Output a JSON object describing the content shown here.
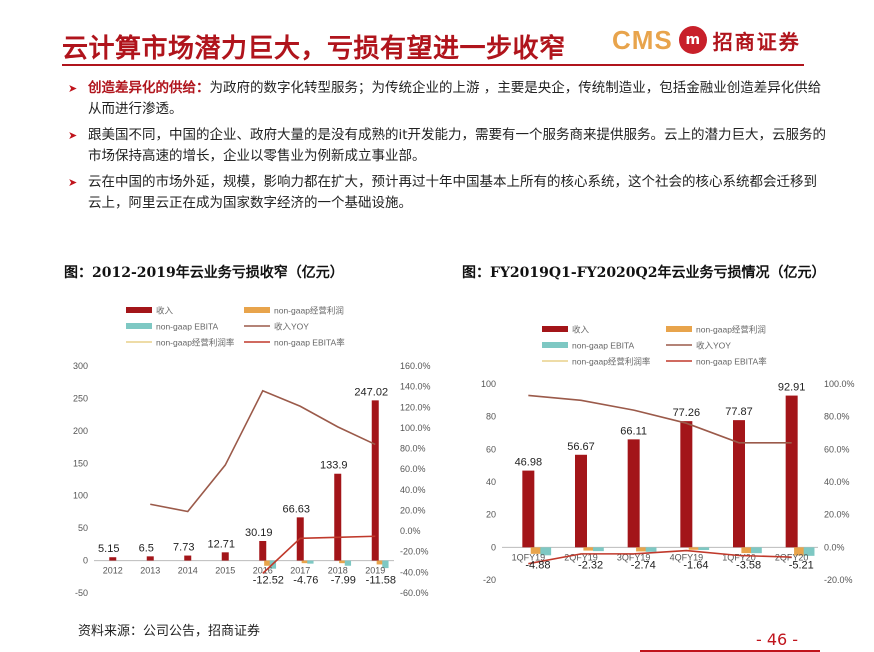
{
  "page": {
    "title": "云计算市场潜力巨大，亏损有望进一步收窄",
    "logo_cms": "CMS",
    "logo_badge": "m",
    "logo_cn": "招商证券",
    "bullets": [
      {
        "highlight": "创造差异化的供给：",
        "text": "为政府的数字化转型服务；为传统企业的上游 ，主要是央企，传统制造业，包括金融业创造差异化供给从而进行渗透。"
      },
      {
        "highlight": "",
        "text": "跟美国不同，中国的企业、政府大量的是没有成熟的it开发能力，需要有一个服务商来提供服务。云上的潜力巨大，云服务的市场保持高速的增长，企业以零售业为例新成立事业部。"
      },
      {
        "highlight": "",
        "text": "云在中国的市场外延，规模，影响力都在扩大，预计再过十年中国基本上所有的核心系统，这个社会的核心系统都会迁移到云上，阿里云正在成为国家数字经济的一个基础设施。"
      }
    ],
    "source": "资料来源：公司公告，招商证券",
    "page_number": "- 46 -",
    "colors": {
      "accent": "#b0141c",
      "bar_revenue": "#a31519",
      "bar_opprofit": "#e8a44c",
      "bar_ebita": "#7ec8c3",
      "line_yoy": "#9b5a4a",
      "line_ebita_rate": "#c0392b",
      "line_op_margin": "#e8d08a"
    }
  },
  "chart_data": [
    {
      "type": "bar",
      "caption": "图：2012-2019年云业务亏损收窄（亿元）",
      "categories": [
        "2012",
        "2013",
        "2014",
        "2015",
        "2016",
        "2017",
        "2018",
        "2019"
      ],
      "legend": [
        "收入",
        "non-gaap经营利润",
        "non-gaap EBITA",
        "收入YOY",
        "non-gaap经营利润率",
        "non-gaap EBITA率"
      ],
      "ylim": [
        -50,
        300
      ],
      "yticks": [
        "300",
        "250",
        "200",
        "150",
        "100",
        "50",
        "0",
        "-50"
      ],
      "y2lim": [
        -0.6,
        1.6
      ],
      "y2ticks": [
        "160.0%",
        "140.0%",
        "120.0%",
        "100.0%",
        "80.0%",
        "60.0%",
        "40.0%",
        "20.0%",
        "0.0%",
        "-20.0%",
        "-40.0%",
        "-60.0%"
      ],
      "series": [
        {
          "name": "收入",
          "kind": "bar",
          "values": [
            5.15,
            6.5,
            7.73,
            12.71,
            30.19,
            66.63,
            133.9,
            247.02
          ],
          "labels": [
            "5.15",
            "6.5",
            "7.73",
            "12.71",
            "30.19",
            "66.63",
            "133.9",
            "247.02"
          ]
        },
        {
          "name": "non-gaap经营利润",
          "kind": "bar",
          "values": [
            null,
            null,
            null,
            null,
            -8,
            -4,
            -4,
            -6
          ]
        },
        {
          "name": "non-gaap EBITA",
          "kind": "bar",
          "values": [
            null,
            null,
            null,
            null,
            -12.52,
            -4.76,
            -7.99,
            -11.58
          ],
          "labels": [
            "",
            "",
            "",
            "",
            "-12.52",
            "-4.76",
            "-7.99",
            "-11.58"
          ]
        },
        {
          "name": "收入YOY",
          "kind": "line",
          "axis": "y2",
          "values": [
            null,
            0.26,
            0.19,
            0.64,
            1.36,
            1.21,
            1.01,
            0.84
          ]
        },
        {
          "name": "non-gaap EBITA率",
          "kind": "line",
          "axis": "y2",
          "values": [
            null,
            null,
            null,
            null,
            -0.41,
            -0.07,
            -0.06,
            -0.05
          ]
        }
      ]
    },
    {
      "type": "bar",
      "caption": "图：FY2019Q1-FY2020Q2年云业务亏损情况（亿元）",
      "categories": [
        "1QFY19",
        "2QFY19",
        "3QFY19",
        "4QFY19",
        "1QFY20",
        "2QFY20"
      ],
      "legend": [
        "收入",
        "non-gaap经营利润",
        "non-gaap EBITA",
        "收入YOY",
        "non-gaap经营利润率",
        "non-gaap EBITA率"
      ],
      "ylim": [
        -20,
        100
      ],
      "yticks": [
        "100",
        "80",
        "60",
        "40",
        "20",
        "0",
        "-20"
      ],
      "y2lim": [
        -0.2,
        1.0
      ],
      "y2ticks": [
        "100.0%",
        "80.0%",
        "60.0%",
        "40.0%",
        "20.0%",
        "0.0%",
        "-20.0%"
      ],
      "series": [
        {
          "name": "收入",
          "kind": "bar",
          "values": [
            46.98,
            56.67,
            66.11,
            77.26,
            77.87,
            92.91
          ],
          "labels": [
            "46.98",
            "56.67",
            "66.11",
            "77.26",
            "77.87",
            "92.91"
          ]
        },
        {
          "name": "non-gaap经营利润",
          "kind": "bar",
          "values": [
            -4,
            -2,
            -2.5,
            -1.5,
            -3.5,
            -5
          ]
        },
        {
          "name": "non-gaap EBITA",
          "kind": "bar",
          "values": [
            -4.88,
            -2.32,
            -2.74,
            -1.64,
            -3.58,
            -5.21
          ],
          "labels": [
            "-4.88",
            "-2.32",
            "-2.74",
            "-1.64",
            "-3.58",
            "-5.21"
          ]
        },
        {
          "name": "收入YOY",
          "kind": "line",
          "axis": "y2",
          "values": [
            0.93,
            0.9,
            0.84,
            0.76,
            0.64,
            0.64
          ]
        },
        {
          "name": "non-gaap EBITA率",
          "kind": "line",
          "axis": "y2",
          "values": [
            -0.1,
            -0.04,
            -0.04,
            -0.02,
            -0.05,
            -0.06
          ]
        }
      ]
    }
  ]
}
